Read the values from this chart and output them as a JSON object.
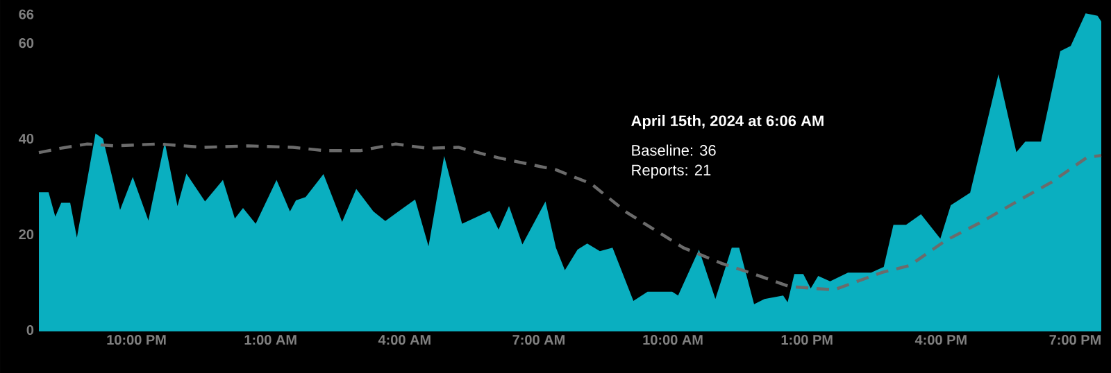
{
  "chart_data": {
    "type": "area",
    "xlim": [
      "2024-04-14T19:49",
      "2024-04-15T19:35"
    ],
    "ylim": [
      0,
      69
    ],
    "xticks": [
      {
        "value": "2024-04-14T22:00",
        "label": "10:00 PM"
      },
      {
        "value": "2024-04-15T01:00",
        "label": "1:00 AM"
      },
      {
        "value": "2024-04-15T04:00",
        "label": "4:00 AM"
      },
      {
        "value": "2024-04-15T07:00",
        "label": "7:00 AM"
      },
      {
        "value": "2024-04-15T10:00",
        "label": "10:00 AM"
      },
      {
        "value": "2024-04-15T13:00",
        "label": "1:00 PM"
      },
      {
        "value": "2024-04-15T16:00",
        "label": "4:00 PM"
      },
      {
        "value": "2024-04-15T19:00",
        "label": "7:00 PM"
      }
    ],
    "yticks": [
      0,
      20,
      40,
      60,
      66
    ],
    "marker": "none",
    "annotations": [
      "April 15th, 2024 at 6:06 AM",
      "Baseline: 36",
      "Reports: 21"
    ],
    "series": [
      {
        "color": "#0aafc0",
        "x": [
          "2024-04-14T19:49",
          "2024-04-14T20:02",
          "2024-04-14T20:11",
          "2024-04-14T20:19",
          "2024-04-14T20:31",
          "2024-04-14T20:40",
          "2024-04-14T21:05",
          "2024-04-14T21:15",
          "2024-04-14T21:38",
          "2024-04-14T21:55",
          "2024-04-14T22:16",
          "2024-04-14T22:38",
          "2024-04-14T22:55",
          "2024-04-14T23:07",
          "2024-04-14T23:32",
          "2024-04-14T23:56",
          "2024-04-15T00:12",
          "2024-04-15T00:23",
          "2024-04-15T00:40",
          "2024-04-15T01:08",
          "2024-04-15T01:26",
          "2024-04-15T01:34",
          "2024-04-15T01:47",
          "2024-04-15T02:11",
          "2024-04-15T02:36",
          "2024-04-15T02:55",
          "2024-04-15T03:18",
          "2024-04-15T03:34",
          "2024-04-15T03:58",
          "2024-04-15T04:14",
          "2024-04-15T04:32",
          "2024-04-15T04:53",
          "2024-04-15T05:17",
          "2024-04-15T05:54",
          "2024-04-15T06:06",
          "2024-04-15T06:20",
          "2024-04-15T06:38",
          "2024-04-15T07:09",
          "2024-04-15T07:23",
          "2024-04-15T07:35",
          "2024-04-15T07:52",
          "2024-04-15T08:05",
          "2024-04-15T08:22",
          "2024-04-15T08:39",
          "2024-04-15T09:07",
          "2024-04-15T09:26",
          "2024-04-15T09:59",
          "2024-04-15T10:07",
          "2024-04-15T10:35",
          "2024-04-15T10:57",
          "2024-04-15T11:19",
          "2024-04-15T11:29",
          "2024-04-15T11:49",
          "2024-04-15T12:03",
          "2024-04-15T12:28",
          "2024-04-15T12:34",
          "2024-04-15T12:43",
          "2024-04-15T12:55",
          "2024-04-15T13:05",
          "2024-04-15T13:15",
          "2024-04-15T13:31",
          "2024-04-15T13:55",
          "2024-04-15T14:26",
          "2024-04-15T14:43",
          "2024-04-15T14:56",
          "2024-04-15T15:13",
          "2024-04-15T15:33",
          "2024-04-15T15:59",
          "2024-04-15T16:13",
          "2024-04-15T16:39",
          "2024-04-15T17:17",
          "2024-04-15T17:41",
          "2024-04-15T17:53",
          "2024-04-15T18:14",
          "2024-04-15T18:40",
          "2024-04-15T18:54",
          "2024-04-15T19:14",
          "2024-04-15T19:30",
          "2024-04-15T19:35"
        ],
        "values": [
          28.8,
          28.8,
          23.7,
          26.6,
          26.6,
          19.3,
          41.1,
          40,
          25.1,
          32,
          22.9,
          39.3,
          25.9,
          32.7,
          26.9,
          31.4,
          23.3,
          25.5,
          22.2,
          31.4,
          24.8,
          27.1,
          27.8,
          32.6,
          22.6,
          29.5,
          24.8,
          22.8,
          25.5,
          27.3,
          17.5,
          36.4,
          22.2,
          24.9,
          21,
          25.9,
          17.9,
          26.9,
          17.2,
          12.5,
          16.8,
          18.1,
          16.5,
          17.2,
          6.1,
          8,
          8,
          7.2,
          16.8,
          6.5,
          17.2,
          17.2,
          5.4,
          6.5,
          7.2,
          5.8,
          11.7,
          11.7,
          8.7,
          11.3,
          10.2,
          12,
          12,
          13.2,
          22,
          22,
          24.2,
          19.1,
          26.1,
          28.7,
          53.5,
          37.2,
          39.4,
          39.4,
          58.3,
          59.4,
          66.2,
          65.7,
          64.5
        ]
      },
      {
        "type": "line",
        "color": "#6b6b6b",
        "line_style": "dashed",
        "x": [
          "2024-04-14T19:49",
          "2024-04-14T20:18",
          "2024-04-14T20:54",
          "2024-04-14T21:30",
          "2024-04-14T22:30",
          "2024-04-14T23:30",
          "2024-04-15T00:30",
          "2024-04-15T01:30",
          "2024-04-15T02:12",
          "2024-04-15T03:00",
          "2024-04-15T03:48",
          "2024-04-15T04:30",
          "2024-04-15T05:12",
          "2024-04-15T05:48",
          "2024-04-15T06:06",
          "2024-04-15T07:23",
          "2024-04-15T08:10",
          "2024-04-15T08:58",
          "2024-04-15T10:14",
          "2024-04-15T11:06",
          "2024-04-15T11:49",
          "2024-04-15T12:36",
          "2024-04-15T13:36",
          "2024-04-15T14:40",
          "2024-04-15T15:18",
          "2024-04-15T16:06",
          "2024-04-15T16:53",
          "2024-04-15T17:41",
          "2024-04-15T18:28",
          "2024-04-15T19:16",
          "2024-04-15T19:35"
        ],
        "values": [
          37.1,
          38,
          38.9,
          38.5,
          38.9,
          38.2,
          38.5,
          38.2,
          37.5,
          37.5,
          38.9,
          38,
          38.2,
          36.7,
          36,
          33.5,
          30.6,
          24.6,
          17.2,
          13.9,
          11.7,
          9.1,
          8.4,
          12,
          13.5,
          18.7,
          22.5,
          26.8,
          30.9,
          36.1,
          36.5
        ]
      }
    ]
  }
}
